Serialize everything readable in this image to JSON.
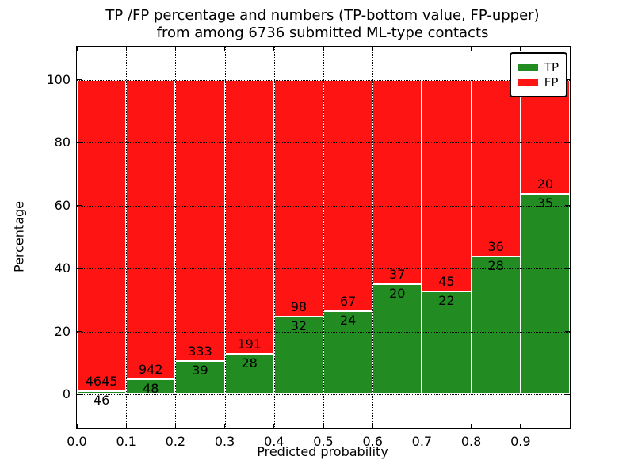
{
  "figure": {
    "title_line1": "TP /FP percentage and numbers (TP-bottom value, FP-upper)",
    "title_line2": "from among 6736 submitted ML-type contacts"
  },
  "chart_data": {
    "type": "bar",
    "stacked": true,
    "normalized_to_percent": true,
    "title": "TP /FP percentage and numbers (TP-bottom value, FP-upper) from among 6736 submitted ML-type contacts",
    "xlabel": "Predicted probability",
    "ylabel": "Percentage",
    "total_contacts": 6736,
    "x_tick_labels": [
      "0.0",
      "0.1",
      "0.2",
      "0.3",
      "0.4",
      "0.5",
      "0.6",
      "0.7",
      "0.8",
      "0.9"
    ],
    "y_ticks": [
      0,
      20,
      40,
      60,
      80,
      100
    ],
    "xlim": [
      0,
      1
    ],
    "ylim": [
      -10.8,
      110.5
    ],
    "bar_width": 0.1,
    "bin_starts": [
      0.0,
      0.1,
      0.2,
      0.3,
      0.4,
      0.5,
      0.6,
      0.7,
      0.8,
      0.9
    ],
    "series": [
      {
        "name": "TP",
        "color": "#228B22",
        "counts": [
          46,
          48,
          39,
          28,
          32,
          24,
          20,
          22,
          28,
          35
        ]
      },
      {
        "name": "FP",
        "color": "#FF1414",
        "counts": [
          4645,
          942,
          333,
          191,
          98,
          67,
          37,
          45,
          36,
          20
        ]
      }
    ],
    "tp_percent_per_bin": [
      0.98,
      4.85,
      10.48,
      12.79,
      24.62,
      26.37,
      35.09,
      32.84,
      43.75,
      63.64
    ],
    "legend": {
      "position": "upper right",
      "entries": [
        "TP",
        "FP"
      ]
    },
    "grid": "dotted, drawn above bars"
  }
}
